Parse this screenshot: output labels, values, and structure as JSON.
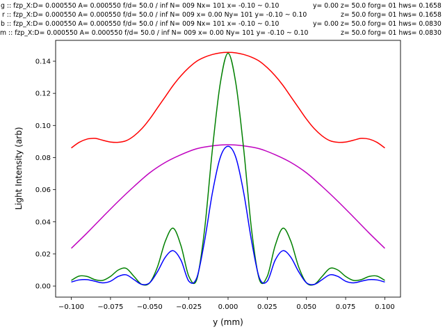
{
  "header_lines": [
    {
      "left": "g :: fzp_X:D= 0.000550 A= 0.000550 f/d= 50.0 / inf N= 009 Nx= 101 x= -0.10 ~ 0.10",
      "right": "y= 0.00 z= 50.0 forg= 01 hws= 0.1658"
    },
    {
      "left": "r :: fzp_X:D= 0.000550 A= 0.000550 f/d= 50.0 / inf N= 009 x= 0.00 Ny= 101 y= -0.10 ~ 0.10",
      "right": "z= 50.0 forg= 01 hws= 0.1658"
    },
    {
      "left": "b :: fzp_X:D= 0.000550 A= 0.000550 f/d= 50.0 / inf N= 009 Nx= 101 x= -0.10 ~ 0.10",
      "right": "y= 0.00 z= 50.0 forg= 01 hws= 0.0830"
    },
    {
      "left": "m :: fzp_X:D= 0.000550 A= 0.000550 f/d= 50.0 / inf N= 009 x= 0.00 Ny= 101 y= -0.10 ~ 0.10",
      "right": "z= 50.0 forg= 01 hws= 0.0830"
    }
  ],
  "chart_data": {
    "type": "line",
    "xlabel": "y (mm)",
    "ylabel": "Light Intensity (arb)",
    "xlim": [
      -0.11,
      0.11
    ],
    "ylim": [
      -0.0069,
      0.153
    ],
    "xticks": [
      -0.1,
      -0.075,
      -0.05,
      -0.025,
      0.0,
      0.025,
      0.05,
      0.075,
      0.1
    ],
    "xtick_labels": [
      "−0.100",
      "−0.075",
      "−0.050",
      "−0.025",
      "0.000",
      "0.025",
      "0.050",
      "0.075",
      "0.100"
    ],
    "yticks": [
      0,
      0.02,
      0.04,
      0.06,
      0.08,
      0.1,
      0.12,
      0.14
    ],
    "ytick_labels": [
      "0.00",
      "0.02",
      "0.04",
      "0.06",
      "0.08",
      "0.10",
      "0.12",
      "0.14"
    ],
    "grid": false,
    "series": [
      {
        "name": "r",
        "color": "#ff0000",
        "x_step": 0.005,
        "values": [
          0.086,
          0.0895,
          0.0915,
          0.092,
          0.0908,
          0.0897,
          0.0895,
          0.0905,
          0.0935,
          0.098,
          0.104,
          0.111,
          0.118,
          0.125,
          0.131,
          0.136,
          0.14,
          0.1425,
          0.1442,
          0.1452,
          0.1455,
          0.1452,
          0.1442,
          0.1425,
          0.14,
          0.136,
          0.131,
          0.125,
          0.118,
          0.111,
          0.104,
          0.098,
          0.0935,
          0.0905,
          0.0895,
          0.0897,
          0.0908,
          0.092,
          0.0915,
          0.0895,
          0.086
        ]
      },
      {
        "name": "m",
        "color": "#bf00bf",
        "x_step": 0.01,
        "values": [
          0.0235,
          0.033,
          0.043,
          0.0528,
          0.062,
          0.0705,
          0.077,
          0.0818,
          0.0855,
          0.0873,
          0.088,
          0.0873,
          0.0855,
          0.0818,
          0.077,
          0.0705,
          0.062,
          0.0528,
          0.043,
          0.033,
          0.0235
        ]
      },
      {
        "name": "g",
        "color": "#008000",
        "x_step": 0.005,
        "values": [
          0.0035,
          0.0062,
          0.006,
          0.004,
          0.0035,
          0.006,
          0.01,
          0.011,
          0.006,
          0.001,
          0.002,
          0.012,
          0.028,
          0.036,
          0.025,
          0.006,
          0.004,
          0.035,
          0.085,
          0.126,
          0.145,
          0.126,
          0.085,
          0.035,
          0.004,
          0.006,
          0.025,
          0.036,
          0.028,
          0.012,
          0.002,
          0.001,
          0.006,
          0.011,
          0.01,
          0.006,
          0.0035,
          0.004,
          0.006,
          0.0062,
          0.0035
        ]
      },
      {
        "name": "b",
        "color": "#0000ff",
        "x_step": 0.005,
        "values": [
          0.0025,
          0.0038,
          0.004,
          0.003,
          0.002,
          0.003,
          0.006,
          0.007,
          0.004,
          0.001,
          0.002,
          0.009,
          0.018,
          0.022,
          0.016,
          0.003,
          0.005,
          0.028,
          0.058,
          0.08,
          0.087,
          0.08,
          0.058,
          0.028,
          0.005,
          0.003,
          0.016,
          0.022,
          0.018,
          0.009,
          0.002,
          0.001,
          0.004,
          0.007,
          0.006,
          0.003,
          0.002,
          0.003,
          0.004,
          0.0038,
          0.0025
        ]
      }
    ]
  }
}
